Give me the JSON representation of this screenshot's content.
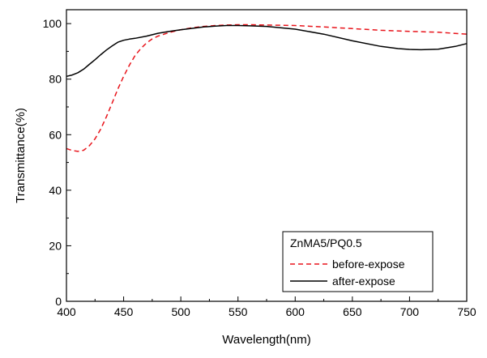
{
  "chart_data": {
    "type": "line",
    "title": "",
    "xlabel": "Wavelength(nm)",
    "ylabel": "Transmittance(%)",
    "xlim": [
      400,
      750
    ],
    "ylim": [
      0,
      105
    ],
    "x_ticks": [
      400,
      450,
      500,
      550,
      600,
      650,
      700,
      750
    ],
    "y_ticks": [
      0,
      20,
      40,
      60,
      80,
      100
    ],
    "legend": {
      "title": "ZnMA5/PQ0.5",
      "position": "bottom-right"
    },
    "series": [
      {
        "name": "before-expose",
        "color": "#e8141b",
        "style": "dashed",
        "x": [
          400,
          405,
          410,
          415,
          420,
          425,
          430,
          435,
          440,
          445,
          450,
          455,
          460,
          465,
          470,
          475,
          480,
          490,
          500,
          510,
          520,
          530,
          540,
          550,
          560,
          575,
          600,
          625,
          650,
          675,
          700,
          725,
          750
        ],
        "y": [
          55.0,
          54.3,
          54.0,
          54.4,
          56.0,
          58.5,
          62.0,
          66.5,
          71.5,
          76.5,
          81.0,
          85.0,
          88.5,
          91.0,
          93.0,
          94.5,
          95.5,
          96.8,
          97.8,
          98.5,
          99.0,
          99.3,
          99.5,
          99.6,
          99.6,
          99.5,
          99.3,
          98.8,
          98.2,
          97.6,
          97.2,
          96.9,
          96.2
        ]
      },
      {
        "name": "after-expose",
        "color": "#000000",
        "style": "solid",
        "x": [
          400,
          405,
          410,
          415,
          420,
          425,
          430,
          435,
          440,
          445,
          450,
          455,
          460,
          470,
          480,
          490,
          500,
          510,
          520,
          530,
          540,
          550,
          560,
          575,
          600,
          625,
          650,
          675,
          690,
          700,
          710,
          725,
          740,
          750
        ],
        "y": [
          81.0,
          81.5,
          82.3,
          83.6,
          85.3,
          87.0,
          88.8,
          90.5,
          92.0,
          93.3,
          94.0,
          94.4,
          94.7,
          95.5,
          96.5,
          97.2,
          97.8,
          98.3,
          98.8,
          99.1,
          99.3,
          99.3,
          99.2,
          99.0,
          98.0,
          96.2,
          93.8,
          91.8,
          91.0,
          90.7,
          90.6,
          90.8,
          91.8,
          92.8
        ]
      }
    ]
  }
}
